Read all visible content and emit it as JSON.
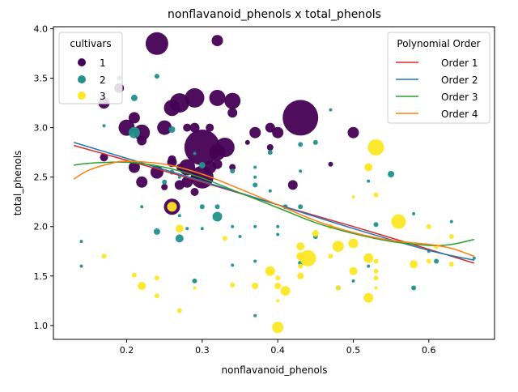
{
  "chart_data": {
    "type": "scatter",
    "title": "nonflavanoid_phenols x total_phenols",
    "xlabel": "nonflavanoid_phenols",
    "ylabel": "total_phenols",
    "xlim": [
      0.103,
      0.687
    ],
    "ylim": [
      0.86,
      4.02
    ],
    "xticks": [
      "0.2",
      "0.3",
      "0.4",
      "0.5",
      "0.6"
    ],
    "xtick_values": [
      0.2,
      0.3,
      0.4,
      0.5,
      0.6
    ],
    "yticks": [
      "1.0",
      "1.5",
      "2.0",
      "2.5",
      "3.0",
      "3.5",
      "4.0"
    ],
    "ytick_values": [
      1.0,
      1.5,
      2.0,
      2.5,
      3.0,
      3.5,
      4.0
    ],
    "grid": false,
    "legend_cultivars": {
      "placement": "upper-left",
      "title": "cultivars",
      "entries": [
        {
          "label": "1",
          "color": "#440154"
        },
        {
          "label": "2",
          "color": "#21918c"
        },
        {
          "label": "3",
          "color": "#fde725"
        }
      ]
    },
    "legend_fits": {
      "placement": "upper-right",
      "title": "Polynomial Order",
      "entries": [
        {
          "label": "Order 1",
          "color": "#d62728"
        },
        {
          "label": "Order 2",
          "color": "#1f77b4"
        },
        {
          "label": "Order 3",
          "color": "#2ca02c"
        },
        {
          "label": "Order 4",
          "color": "#ff7f0e"
        }
      ]
    },
    "fit_curves": [
      {
        "name": "Order 1",
        "color": "#d62728",
        "x": [
          0.13,
          0.2,
          0.3,
          0.4,
          0.5,
          0.6,
          0.66
        ],
        "y": [
          2.82,
          2.67,
          2.45,
          2.22,
          2.0,
          1.77,
          1.63
        ]
      },
      {
        "name": "Order 2",
        "color": "#1f77b4",
        "x": [
          0.13,
          0.2,
          0.3,
          0.4,
          0.5,
          0.6,
          0.66
        ],
        "y": [
          2.85,
          2.69,
          2.46,
          2.22,
          1.98,
          1.76,
          1.66
        ]
      },
      {
        "name": "Order 3",
        "color": "#2ca02c",
        "x": [
          0.13,
          0.15,
          0.2,
          0.25,
          0.3,
          0.35,
          0.4,
          0.45,
          0.5,
          0.55,
          0.6,
          0.63,
          0.66
        ],
        "y": [
          2.62,
          2.64,
          2.65,
          2.6,
          2.49,
          2.34,
          2.19,
          2.04,
          1.93,
          1.85,
          1.81,
          1.82,
          1.87
        ]
      },
      {
        "name": "Order 4",
        "color": "#ff7f0e",
        "x": [
          0.13,
          0.15,
          0.18,
          0.2,
          0.25,
          0.3,
          0.35,
          0.4,
          0.45,
          0.5,
          0.55,
          0.6,
          0.63,
          0.66
        ],
        "y": [
          2.48,
          2.57,
          2.64,
          2.66,
          2.63,
          2.53,
          2.38,
          2.22,
          2.06,
          1.94,
          1.86,
          1.82,
          1.78,
          1.7
        ]
      }
    ],
    "marker_size_note": "marker area varies per point",
    "series": [
      {
        "name": "1",
        "color": "#440154",
        "points": [
          [
            0.24,
            3.85,
            14
          ],
          [
            0.32,
            3.88,
            7
          ],
          [
            0.19,
            3.4,
            6
          ],
          [
            0.17,
            3.25,
            7
          ],
          [
            0.26,
            3.2,
            10
          ],
          [
            0.27,
            3.25,
            12
          ],
          [
            0.29,
            3.3,
            12
          ],
          [
            0.32,
            3.3,
            10
          ],
          [
            0.34,
            3.27,
            10
          ],
          [
            0.21,
            3.1,
            7
          ],
          [
            0.2,
            3.0,
            10
          ],
          [
            0.22,
            2.95,
            10
          ],
          [
            0.25,
            3.0,
            9
          ],
          [
            0.28,
            3.0,
            5
          ],
          [
            0.29,
            3.0,
            6
          ],
          [
            0.31,
            3.0,
            5
          ],
          [
            0.37,
            2.95,
            7
          ],
          [
            0.39,
            3.0,
            6
          ],
          [
            0.4,
            2.95,
            7
          ],
          [
            0.43,
            3.1,
            22
          ],
          [
            0.5,
            2.95,
            7
          ],
          [
            0.22,
            2.87,
            6
          ],
          [
            0.3,
            2.8,
            22
          ],
          [
            0.33,
            2.8,
            12
          ],
          [
            0.32,
            2.75,
            10
          ],
          [
            0.17,
            2.7,
            5
          ],
          [
            0.26,
            2.68,
            5
          ],
          [
            0.26,
            2.65,
            6
          ],
          [
            0.28,
            2.6,
            10
          ],
          [
            0.3,
            2.5,
            14
          ],
          [
            0.31,
            2.6,
            8
          ],
          [
            0.32,
            2.63,
            6
          ],
          [
            0.21,
            2.6,
            7
          ],
          [
            0.24,
            2.55,
            8
          ],
          [
            0.27,
            2.42,
            6
          ],
          [
            0.28,
            2.45,
            7
          ],
          [
            0.29,
            2.35,
            5
          ],
          [
            0.22,
            2.45,
            7
          ],
          [
            0.26,
            2.2,
            10
          ],
          [
            0.42,
            2.42,
            6
          ],
          [
            0.47,
            2.63,
            3
          ],
          [
            0.39,
            2.8,
            4
          ],
          [
            0.34,
            2.6,
            4
          ],
          [
            0.36,
            2.85,
            3
          ],
          [
            0.29,
            2.5,
            5
          ],
          [
            0.27,
            2.6,
            4
          ],
          [
            0.25,
            2.4,
            4
          ],
          [
            0.34,
            3.15,
            6
          ]
        ]
      },
      {
        "name": "2",
        "color": "#21918c",
        "points": [
          [
            0.21,
            2.95,
            7
          ],
          [
            0.19,
            3.5,
            3
          ],
          [
            0.24,
            3.52,
            3
          ],
          [
            0.21,
            3.3,
            4
          ],
          [
            0.26,
            2.98,
            4
          ],
          [
            0.17,
            3.02,
            2
          ],
          [
            0.47,
            3.18,
            2
          ],
          [
            0.45,
            2.85,
            3
          ],
          [
            0.43,
            2.83,
            3
          ],
          [
            0.39,
            2.75,
            3
          ],
          [
            0.37,
            2.6,
            2
          ],
          [
            0.34,
            2.56,
            3
          ],
          [
            0.3,
            2.62,
            4
          ],
          [
            0.29,
            2.74,
            2
          ],
          [
            0.26,
            2.55,
            3
          ],
          [
            0.25,
            2.45,
            3
          ],
          [
            0.37,
            2.5,
            2
          ],
          [
            0.37,
            2.42,
            3
          ],
          [
            0.39,
            2.36,
            2
          ],
          [
            0.43,
            2.56,
            2
          ],
          [
            0.41,
            2.2,
            3
          ],
          [
            0.43,
            2.2,
            3
          ],
          [
            0.3,
            2.2,
            3
          ],
          [
            0.32,
            2.2,
            3
          ],
          [
            0.22,
            2.2,
            2
          ],
          [
            0.27,
            2.11,
            2
          ],
          [
            0.32,
            2.1,
            6
          ],
          [
            0.34,
            2.0,
            2
          ],
          [
            0.37,
            2.0,
            2
          ],
          [
            0.4,
            2.0,
            2
          ],
          [
            0.45,
            1.9,
            3
          ],
          [
            0.24,
            1.95,
            4
          ],
          [
            0.28,
            1.98,
            2
          ],
          [
            0.27,
            1.88,
            5
          ],
          [
            0.3,
            1.98,
            2
          ],
          [
            0.35,
            1.9,
            2
          ],
          [
            0.4,
            1.92,
            2
          ],
          [
            0.14,
            1.85,
            2
          ],
          [
            0.14,
            1.6,
            2
          ],
          [
            0.34,
            1.61,
            2
          ],
          [
            0.37,
            1.65,
            2
          ],
          [
            0.29,
            1.45,
            3
          ],
          [
            0.37,
            1.1,
            2
          ],
          [
            0.48,
            1.38,
            3
          ],
          [
            0.52,
            1.6,
            2
          ],
          [
            0.53,
            2.02,
            3
          ],
          [
            0.55,
            2.53,
            4
          ],
          [
            0.52,
            2.46,
            2
          ],
          [
            0.58,
            2.13,
            2
          ],
          [
            0.58,
            1.38,
            3
          ],
          [
            0.6,
            1.75,
            2
          ],
          [
            0.61,
            1.65,
            3
          ],
          [
            0.63,
            2.05,
            2
          ],
          [
            0.66,
            1.68,
            2
          ],
          [
            0.5,
            1.45,
            2
          ],
          [
            0.43,
            1.63,
            3
          ],
          [
            0.29,
            1.45,
            2
          ],
          [
            0.27,
            2.5,
            2
          ]
        ]
      },
      {
        "name": "3",
        "color": "#fde725",
        "points": [
          [
            0.53,
            2.8,
            10
          ],
          [
            0.56,
            2.05,
            9
          ],
          [
            0.52,
            2.6,
            5
          ],
          [
            0.53,
            2.32,
            3
          ],
          [
            0.5,
            2.3,
            2
          ],
          [
            0.26,
            2.2,
            6
          ],
          [
            0.27,
            1.98,
            5
          ],
          [
            0.17,
            1.7,
            3
          ],
          [
            0.21,
            1.51,
            3
          ],
          [
            0.22,
            1.4,
            5
          ],
          [
            0.24,
            1.48,
            3
          ],
          [
            0.24,
            1.3,
            3
          ],
          [
            0.27,
            1.15,
            3
          ],
          [
            0.29,
            1.38,
            2
          ],
          [
            0.34,
            1.41,
            3
          ],
          [
            0.37,
            1.4,
            4
          ],
          [
            0.39,
            1.55,
            6
          ],
          [
            0.4,
            1.48,
            3
          ],
          [
            0.4,
            1.4,
            4
          ],
          [
            0.41,
            1.35,
            6
          ],
          [
            0.4,
            1.25,
            2
          ],
          [
            0.4,
            0.98,
            7
          ],
          [
            0.43,
            1.8,
            5
          ],
          [
            0.43,
            1.7,
            5
          ],
          [
            0.43,
            1.5,
            4
          ],
          [
            0.43,
            1.6,
            3
          ],
          [
            0.44,
            1.68,
            10
          ],
          [
            0.45,
            1.93,
            4
          ],
          [
            0.47,
            1.7,
            3
          ],
          [
            0.48,
            1.8,
            7
          ],
          [
            0.48,
            1.38,
            3
          ],
          [
            0.5,
            1.83,
            6
          ],
          [
            0.5,
            1.55,
            5
          ],
          [
            0.52,
            1.68,
            6
          ],
          [
            0.52,
            1.28,
            6
          ],
          [
            0.53,
            1.65,
            3
          ],
          [
            0.53,
            1.48,
            3
          ],
          [
            0.53,
            1.38,
            2
          ],
          [
            0.58,
            1.62,
            5
          ],
          [
            0.6,
            2.0,
            3
          ],
          [
            0.6,
            1.65,
            3
          ],
          [
            0.61,
            1.8,
            3
          ],
          [
            0.63,
            1.9,
            3
          ],
          [
            0.63,
            1.62,
            3
          ],
          [
            0.47,
            2.0,
            3
          ],
          [
            0.45,
            1.95,
            2
          ],
          [
            0.39,
            1.55,
            3
          ],
          [
            0.33,
            1.88,
            3
          ],
          [
            0.53,
            1.55,
            3
          ]
        ]
      }
    ]
  }
}
